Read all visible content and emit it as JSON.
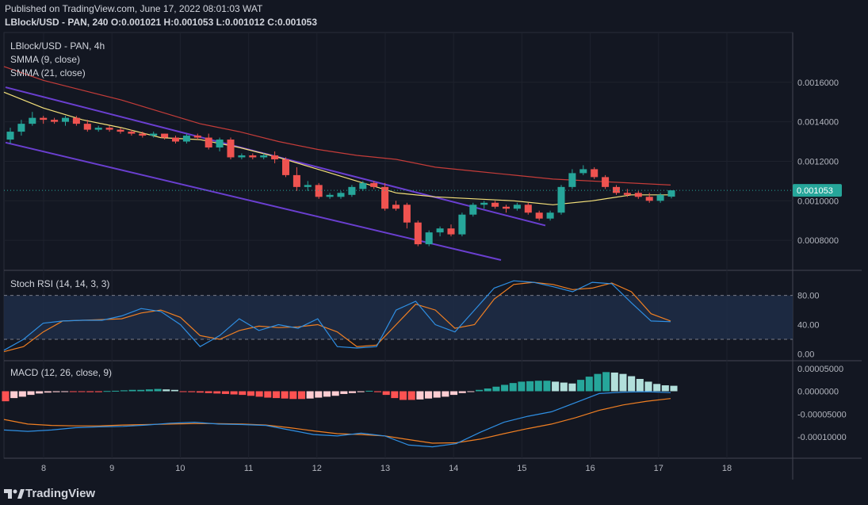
{
  "header": {
    "published": "Published on TradingView.com, June 17, 2022 08:01:03 WAT",
    "symbol": "LBlock/USD - PAN, 240",
    "ohlc": "O:0.001021 H:0.001053 L:0.001012 C:0.001053"
  },
  "footer": {
    "logo_text": "TradingView"
  },
  "colors": {
    "background": "#131722",
    "bull": "#26a69a",
    "bear": "#ef5350",
    "smma9": "#f5e17a",
    "smma21": "#c43c39",
    "channel": "#6a3fd0",
    "stoch_k": "#2f8fe3",
    "stoch_d": "#f07f22",
    "macd": "#2f8fe3",
    "signal": "#f07f22",
    "hist_up_strong": "#26a69a",
    "hist_up_weak": "#b2dfdb",
    "hist_down_strong": "#ff5252",
    "hist_down_weak": "#ffcdd2"
  },
  "chart_data": [
    {
      "type": "candlestick",
      "title": "LBlock/USD - PAN, 4h",
      "last_price_label": "0.001053",
      "x_ticks": [
        "8",
        "9",
        "10",
        "11",
        "12",
        "13",
        "14",
        "15",
        "16",
        "17",
        "18"
      ],
      "y_ticks": [
        "0.0008000",
        "0.0010000",
        "0.0012000",
        "0.0014000",
        "0.0016000"
      ],
      "ylim": [
        0.00068,
        0.00182
      ],
      "indicators": [
        {
          "name": "SMMA (9, close)",
          "values": [
            0.00155,
            0.00147,
            0.00141,
            0.00137,
            0.00132,
            0.00131,
            0.00127,
            0.00122,
            0.00116,
            0.0011,
            0.00104,
            0.00102,
            0.00101,
            0.001,
            0.00098,
            0.001,
            0.00103,
            0.00103
          ]
        },
        {
          "name": "SMMA (21, close)",
          "values": [
            0.00168,
            0.00161,
            0.00156,
            0.00151,
            0.00145,
            0.00139,
            0.00135,
            0.0013,
            0.00126,
            0.00123,
            0.00121,
            0.00117,
            0.00115,
            0.00113,
            0.00111,
            0.0011,
            0.00109,
            0.00108
          ]
        }
      ],
      "candles": [
        {
          "o": 0.00131,
          "h": 0.00137,
          "l": 0.00129,
          "c": 0.00135
        },
        {
          "o": 0.00135,
          "h": 0.00141,
          "l": 0.00133,
          "c": 0.00139
        },
        {
          "o": 0.00139,
          "h": 0.00145,
          "l": 0.00138,
          "c": 0.00142
        },
        {
          "o": 0.00142,
          "h": 0.00143,
          "l": 0.00139,
          "c": 0.00141
        },
        {
          "o": 0.00141,
          "h": 0.00142,
          "l": 0.00139,
          "c": 0.0014
        },
        {
          "o": 0.0014,
          "h": 0.00143,
          "l": 0.00138,
          "c": 0.00142
        },
        {
          "o": 0.00142,
          "h": 0.00143,
          "l": 0.00138,
          "c": 0.00139
        },
        {
          "o": 0.00139,
          "h": 0.00141,
          "l": 0.00135,
          "c": 0.00136
        },
        {
          "o": 0.00136,
          "h": 0.00138,
          "l": 0.00135,
          "c": 0.00137
        },
        {
          "o": 0.00137,
          "h": 0.00138,
          "l": 0.00135,
          "c": 0.00136
        },
        {
          "o": 0.00136,
          "h": 0.00137,
          "l": 0.00134,
          "c": 0.00135
        },
        {
          "o": 0.00135,
          "h": 0.00136,
          "l": 0.00133,
          "c": 0.00134
        },
        {
          "o": 0.00134,
          "h": 0.00135,
          "l": 0.00132,
          "c": 0.00133
        },
        {
          "o": 0.00133,
          "h": 0.00135,
          "l": 0.00132,
          "c": 0.00134
        },
        {
          "o": 0.00134,
          "h": 0.00134,
          "l": 0.00131,
          "c": 0.00132
        },
        {
          "o": 0.00132,
          "h": 0.00133,
          "l": 0.00129,
          "c": 0.0013
        },
        {
          "o": 0.0013,
          "h": 0.00134,
          "l": 0.00129,
          "c": 0.00133
        },
        {
          "o": 0.00133,
          "h": 0.00134,
          "l": 0.00131,
          "c": 0.00132
        },
        {
          "o": 0.00132,
          "h": 0.00134,
          "l": 0.00126,
          "c": 0.00127
        },
        {
          "o": 0.00127,
          "h": 0.00132,
          "l": 0.00125,
          "c": 0.00131
        },
        {
          "o": 0.00131,
          "h": 0.00132,
          "l": 0.00121,
          "c": 0.00122
        },
        {
          "o": 0.00122,
          "h": 0.00124,
          "l": 0.00121,
          "c": 0.00123
        },
        {
          "o": 0.00123,
          "h": 0.00124,
          "l": 0.00121,
          "c": 0.00122
        },
        {
          "o": 0.00122,
          "h": 0.00124,
          "l": 0.00121,
          "c": 0.00123
        },
        {
          "o": 0.00123,
          "h": 0.00125,
          "l": 0.00119,
          "c": 0.00121
        },
        {
          "o": 0.00121,
          "h": 0.00122,
          "l": 0.00112,
          "c": 0.00113
        },
        {
          "o": 0.00113,
          "h": 0.00117,
          "l": 0.00105,
          "c": 0.00107
        },
        {
          "o": 0.00107,
          "h": 0.0011,
          "l": 0.00105,
          "c": 0.00108
        },
        {
          "o": 0.00108,
          "h": 0.00109,
          "l": 0.00101,
          "c": 0.00102
        },
        {
          "o": 0.00102,
          "h": 0.00104,
          "l": 0.00101,
          "c": 0.00103
        },
        {
          "o": 0.00102,
          "h": 0.00105,
          "l": 0.00101,
          "c": 0.00104
        },
        {
          "o": 0.00103,
          "h": 0.00108,
          "l": 0.00102,
          "c": 0.00107
        },
        {
          "o": 0.00106,
          "h": 0.0011,
          "l": 0.00105,
          "c": 0.00109
        },
        {
          "o": 0.00109,
          "h": 0.0011,
          "l": 0.00106,
          "c": 0.00107
        },
        {
          "o": 0.00107,
          "h": 0.00109,
          "l": 0.00095,
          "c": 0.00096
        },
        {
          "o": 0.00098,
          "h": 0.001,
          "l": 0.00095,
          "c": 0.00096
        },
        {
          "o": 0.00098,
          "h": 0.00099,
          "l": 0.00086,
          "c": 0.00089
        },
        {
          "o": 0.00089,
          "h": 0.0009,
          "l": 0.00077,
          "c": 0.00078
        },
        {
          "o": 0.00078,
          "h": 0.00085,
          "l": 0.00077,
          "c": 0.00084
        },
        {
          "o": 0.00084,
          "h": 0.00087,
          "l": 0.00082,
          "c": 0.00086
        },
        {
          "o": 0.00086,
          "h": 0.00088,
          "l": 0.00082,
          "c": 0.00083
        },
        {
          "o": 0.00083,
          "h": 0.00094,
          "l": 0.00082,
          "c": 0.00093
        },
        {
          "o": 0.00093,
          "h": 0.00099,
          "l": 0.00092,
          "c": 0.00098
        },
        {
          "o": 0.00098,
          "h": 0.001,
          "l": 0.00096,
          "c": 0.00099
        },
        {
          "o": 0.00099,
          "h": 0.001,
          "l": 0.00096,
          "c": 0.00097
        },
        {
          "o": 0.00097,
          "h": 0.00098,
          "l": 0.00094,
          "c": 0.00096
        },
        {
          "o": 0.00096,
          "h": 0.00099,
          "l": 0.00095,
          "c": 0.00098
        },
        {
          "o": 0.00098,
          "h": 0.00099,
          "l": 0.00093,
          "c": 0.00094
        },
        {
          "o": 0.00094,
          "h": 0.00095,
          "l": 0.0009,
          "c": 0.00091
        },
        {
          "o": 0.00091,
          "h": 0.00095,
          "l": 0.0009,
          "c": 0.00094
        },
        {
          "o": 0.00094,
          "h": 0.00108,
          "l": 0.00093,
          "c": 0.00107
        },
        {
          "o": 0.00107,
          "h": 0.00116,
          "l": 0.00106,
          "c": 0.00114
        },
        {
          "o": 0.00114,
          "h": 0.00118,
          "l": 0.00113,
          "c": 0.00116
        },
        {
          "o": 0.00116,
          "h": 0.00117,
          "l": 0.00111,
          "c": 0.00112
        },
        {
          "o": 0.00112,
          "h": 0.00113,
          "l": 0.00106,
          "c": 0.00107
        },
        {
          "o": 0.00107,
          "h": 0.00108,
          "l": 0.00103,
          "c": 0.00104
        },
        {
          "o": 0.00104,
          "h": 0.00106,
          "l": 0.00102,
          "c": 0.00103
        },
        {
          "o": 0.00104,
          "h": 0.00105,
          "l": 0.00101,
          "c": 0.00102
        },
        {
          "o": 0.00102,
          "h": 0.00104,
          "l": 0.00099,
          "c": 0.001
        },
        {
          "o": 0.001,
          "h": 0.00104,
          "l": 0.00099,
          "c": 0.00103
        },
        {
          "o": 0.001021,
          "h": 0.001053,
          "l": 0.001012,
          "c": 0.001053
        }
      ]
    },
    {
      "type": "line",
      "title": "Stoch RSI (14, 14, 3, 3)",
      "y_ticks": [
        "0.00",
        "40.00",
        "80.00"
      ],
      "ylim": [
        -5,
        110
      ],
      "band": [
        20,
        80
      ],
      "series": [
        {
          "name": "K",
          "values": [
            5,
            20,
            42,
            45,
            46,
            46,
            52,
            62,
            58,
            40,
            10,
            25,
            48,
            32,
            40,
            35,
            48,
            10,
            8,
            10,
            60,
            72,
            40,
            30,
            60,
            90,
            100,
            98,
            92,
            85,
            98,
            96,
            70,
            45,
            44
          ]
        },
        {
          "name": "D",
          "values": [
            3,
            10,
            30,
            45,
            46,
            47,
            48,
            56,
            60,
            50,
            25,
            20,
            32,
            38,
            36,
            37,
            40,
            30,
            10,
            12,
            40,
            68,
            60,
            35,
            40,
            75,
            95,
            98,
            95,
            88,
            90,
            97,
            85,
            55,
            45
          ]
        }
      ]
    },
    {
      "type": "bar",
      "title": "MACD (12, 26, close, 9)",
      "y_ticks": [
        "0.00005000",
        "0.0000000",
        "-0.00005000",
        "-0.00010000"
      ],
      "ylim": [
        -0.00014,
        6e-05
      ],
      "histogram": [
        -2.2e-05,
        -1.5e-05,
        -1.2e-05,
        -8e-06,
        -5e-06,
        -3e-06,
        -2e-06,
        -1e-06,
        -1e-06,
        -1e-06,
        -2e-06,
        -2e-06,
        5e-07,
        1e-06,
        2e-06,
        3e-06,
        3e-06,
        4e-06,
        5e-06,
        4e-06,
        3e-06,
        -1e-06,
        -2e-06,
        -3e-06,
        -4e-06,
        -5e-06,
        -6e-06,
        -7e-06,
        -8e-06,
        -1e-05,
        -1.2e-05,
        -1.4e-05,
        -1.5e-05,
        -1.6e-05,
        -1.7e-05,
        -1.7e-05,
        -1.6e-05,
        -1.4e-05,
        -1.2e-05,
        -1e-05,
        -6e-06,
        -4e-06,
        -2e-06,
        1e-06,
        -2e-06,
        -8e-06,
        -1.5e-05,
        -1.9e-05,
        -1.9e-05,
        -1.8e-05,
        -1.6e-05,
        -1.4e-05,
        -1.2e-05,
        -8e-06,
        -4e-06,
        -1e-06,
        3e-06,
        6e-06,
        1e-05,
        1.4e-05,
        1.8e-05,
        2.1e-05,
        2.2e-05,
        2.3e-05,
        2.3e-05,
        2.1e-05,
        1.9e-05,
        1.7e-05,
        2.5e-05,
        3.2e-05,
        3.8e-05,
        4.2e-05,
        4.1e-05,
        3.8e-05,
        3.3e-05,
        2.7e-05,
        2.1e-05,
        1.6e-05,
        1.3e-05,
        1.2e-05
      ],
      "series": [
        {
          "name": "MACD",
          "values": [
            -8.5e-05,
            -8.8e-05,
            -8.5e-05,
            -8e-05,
            -7.8e-05,
            -7.7e-05,
            -7.4e-05,
            -7e-05,
            -6.8e-05,
            -7.2e-05,
            -7.3e-05,
            -7.5e-05,
            -8.5e-05,
            -9.5e-05,
            -9.8e-05,
            -9.2e-05,
            -9.8e-05,
            -0.000118,
            -0.000122,
            -0.000115,
            -9e-05,
            -6.8e-05,
            -5.5e-05,
            -4.5e-05,
            -2.5e-05,
            -5e-06,
            -2e-06,
            -1e-06,
            -3e-06
          ]
        },
        {
          "name": "Signal",
          "values": [
            -6.2e-05,
            -7.2e-05,
            -7.5e-05,
            -7.6e-05,
            -7.6e-05,
            -7.4e-05,
            -7.3e-05,
            -7.2e-05,
            -7.1e-05,
            -7.1e-05,
            -7.2e-05,
            -7.4e-05,
            -8e-05,
            -8.7e-05,
            -9.3e-05,
            -9.5e-05,
            -9.8e-05,
            -0.000106,
            -0.000114,
            -0.000113,
            -0.000105,
            -9.3e-05,
            -8.2e-05,
            -7.2e-05,
            -5.8e-05,
            -4.2e-05,
            -3e-05,
            -2.2e-05,
            -1.6e-05
          ]
        }
      ]
    }
  ]
}
